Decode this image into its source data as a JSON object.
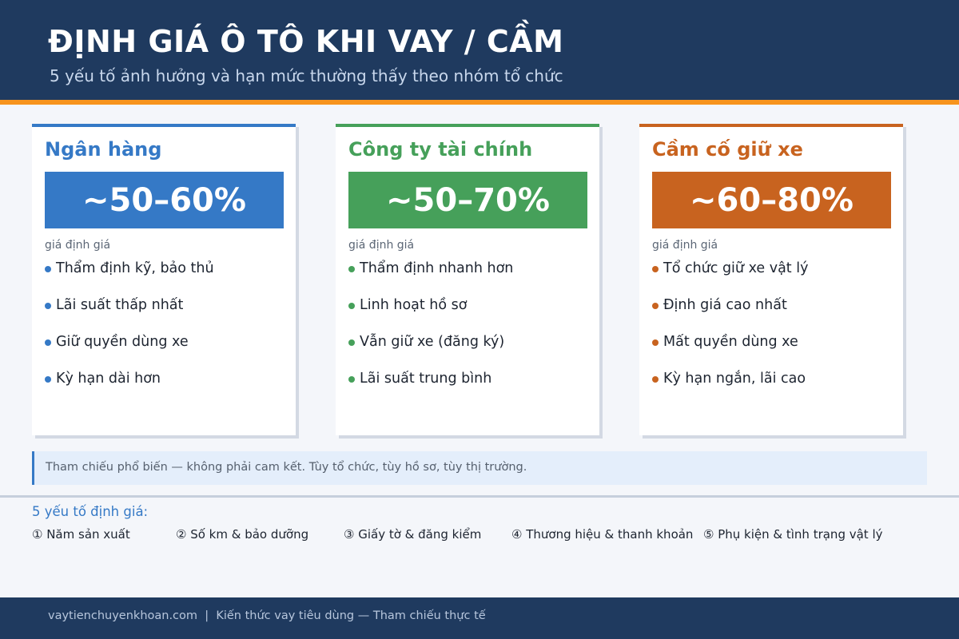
{
  "header": {
    "title": "ĐỊNH GIÁ Ô TÔ KHI VAY / CẦM",
    "subtitle": "5 yếu tố ảnh hưởng và hạn mức thường thấy theo nhóm tổ chức"
  },
  "cards": [
    {
      "title": "Ngân hàng",
      "range": "~50–60%",
      "caption": "giá định giá",
      "items": [
        "Thẩm định kỹ, bảo thủ",
        "Lãi suất thấp nhất",
        "Giữ quyền dùng xe",
        "Kỳ hạn dài hơn"
      ]
    },
    {
      "title": "Công ty tài chính",
      "range": "~50–70%",
      "caption": "giá định giá",
      "items": [
        "Thẩm định nhanh hơn",
        "Linh hoạt hồ sơ",
        "Vẫn giữ xe (đăng ký)",
        "Lãi suất trung bình"
      ]
    },
    {
      "title": "Cầm cố giữ xe",
      "range": "~60–80%",
      "caption": "giá định giá",
      "items": [
        "Tổ chức giữ xe vật lý",
        "Định giá cao nhất",
        "Mất quyền dùng xe",
        "Kỳ hạn ngắn, lãi cao"
      ]
    }
  ],
  "note": "Tham chiếu phổ biến — không phải cam kết. Tùy tổ chức, tùy hồ sơ, tùy thị trường.",
  "factors": {
    "heading": "5 yếu tố định giá:",
    "items": [
      "① Năm sản xuất",
      "② Số km & bảo dưỡng",
      "③ Giấy tờ & đăng kiểm",
      "④ Thương hiệu & thanh khoản",
      "⑤ Phụ kiện & tình trạng vật lý"
    ]
  },
  "footer": "vaytienchuyenkhoan.com  |  Kiến thức vay tiêu dùng — Tham chiếu thực tế"
}
